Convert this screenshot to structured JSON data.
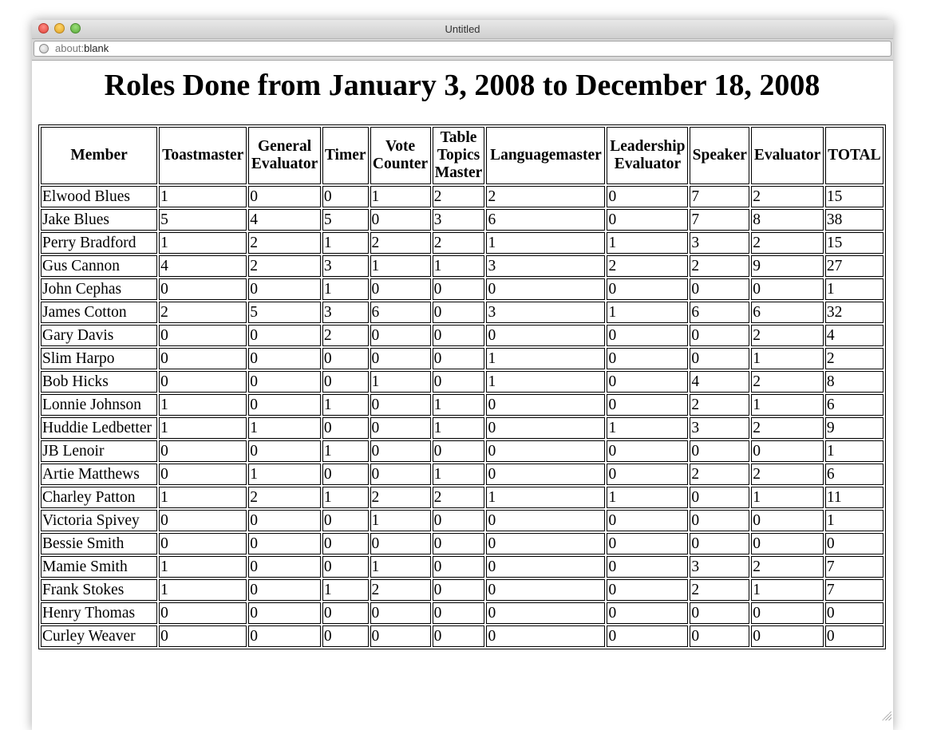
{
  "window": {
    "title": "Untitled"
  },
  "address": {
    "scheme": "about:",
    "rest": "blank"
  },
  "page": {
    "heading": "Roles Done from January 3, 2008 to December 18, 2008"
  },
  "table": {
    "headers": [
      "Member",
      "Toastmaster",
      "General Evaluator",
      "Timer",
      "Vote Counter",
      "Table Topics Master",
      "Languagemaster",
      "Leadership Evaluator",
      "Speaker",
      "Evaluator",
      "TOTAL"
    ],
    "rows": [
      [
        "Elwood Blues",
        "1",
        "0",
        "0",
        "1",
        "2",
        "2",
        "0",
        "7",
        "2",
        "15"
      ],
      [
        "Jake Blues",
        "5",
        "4",
        "5",
        "0",
        "3",
        "6",
        "0",
        "7",
        "8",
        "38"
      ],
      [
        "Perry Bradford",
        "1",
        "2",
        "1",
        "2",
        "2",
        "1",
        "1",
        "3",
        "2",
        "15"
      ],
      [
        "Gus Cannon",
        "4",
        "2",
        "3",
        "1",
        "1",
        "3",
        "2",
        "2",
        "9",
        "27"
      ],
      [
        "John Cephas",
        "0",
        "0",
        "1",
        "0",
        "0",
        "0",
        "0",
        "0",
        "0",
        "1"
      ],
      [
        "James Cotton",
        "2",
        "5",
        "3",
        "6",
        "0",
        "3",
        "1",
        "6",
        "6",
        "32"
      ],
      [
        "Gary Davis",
        "0",
        "0",
        "2",
        "0",
        "0",
        "0",
        "0",
        "0",
        "2",
        "4"
      ],
      [
        "Slim Harpo",
        "0",
        "0",
        "0",
        "0",
        "0",
        "1",
        "0",
        "0",
        "1",
        "2"
      ],
      [
        "Bob Hicks",
        "0",
        "0",
        "0",
        "1",
        "0",
        "1",
        "0",
        "4",
        "2",
        "8"
      ],
      [
        "Lonnie Johnson",
        "1",
        "0",
        "1",
        "0",
        "1",
        "0",
        "0",
        "2",
        "1",
        "6"
      ],
      [
        "Huddie Ledbetter",
        "1",
        "1",
        "0",
        "0",
        "1",
        "0",
        "1",
        "3",
        "2",
        "9"
      ],
      [
        "JB Lenoir",
        "0",
        "0",
        "1",
        "0",
        "0",
        "0",
        "0",
        "0",
        "0",
        "1"
      ],
      [
        "Artie Matthews",
        "0",
        "1",
        "0",
        "0",
        "1",
        "0",
        "0",
        "2",
        "2",
        "6"
      ],
      [
        "Charley Patton",
        "1",
        "2",
        "1",
        "2",
        "2",
        "1",
        "1",
        "0",
        "1",
        "11"
      ],
      [
        "Victoria Spivey",
        "0",
        "0",
        "0",
        "1",
        "0",
        "0",
        "0",
        "0",
        "0",
        "1"
      ],
      [
        "Bessie Smith",
        "0",
        "0",
        "0",
        "0",
        "0",
        "0",
        "0",
        "0",
        "0",
        "0"
      ],
      [
        "Mamie Smith",
        "1",
        "0",
        "0",
        "1",
        "0",
        "0",
        "0",
        "3",
        "2",
        "7"
      ],
      [
        "Frank Stokes",
        "1",
        "0",
        "1",
        "2",
        "0",
        "0",
        "0",
        "2",
        "1",
        "7"
      ],
      [
        "Henry Thomas",
        "0",
        "0",
        "0",
        "0",
        "0",
        "0",
        "0",
        "0",
        "0",
        "0"
      ],
      [
        "Curley Weaver",
        "0",
        "0",
        "0",
        "0",
        "0",
        "0",
        "0",
        "0",
        "0",
        "0"
      ]
    ]
  }
}
